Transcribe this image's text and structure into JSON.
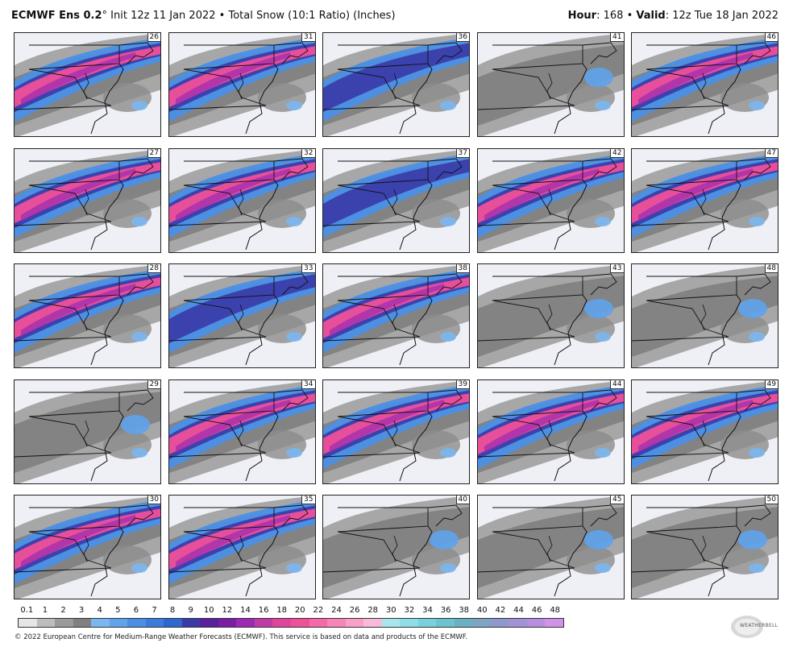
{
  "header": {
    "model": "ECMWF Ens 0.2",
    "degree": "°",
    "init": "Init 12z 11 Jan 2022",
    "bullet": "•",
    "product": "Total Snow (10:1 Ratio) (Inches)",
    "hour_label": "Hour",
    "hour_value": ": 168",
    "valid_label": "Valid",
    "valid_value": ": 12z Tue 18 Jan 2022"
  },
  "panels": [
    {
      "member": "26",
      "intensity": "high"
    },
    {
      "member": "31",
      "intensity": "high"
    },
    {
      "member": "36",
      "intensity": "medium"
    },
    {
      "member": "41",
      "intensity": "low"
    },
    {
      "member": "46",
      "intensity": "high"
    },
    {
      "member": "27",
      "intensity": "high"
    },
    {
      "member": "32",
      "intensity": "high"
    },
    {
      "member": "37",
      "intensity": "medium"
    },
    {
      "member": "42",
      "intensity": "high"
    },
    {
      "member": "47",
      "intensity": "high"
    },
    {
      "member": "28",
      "intensity": "high"
    },
    {
      "member": "33",
      "intensity": "medium"
    },
    {
      "member": "38",
      "intensity": "high"
    },
    {
      "member": "43",
      "intensity": "low"
    },
    {
      "member": "48",
      "intensity": "low"
    },
    {
      "member": "29",
      "intensity": "low"
    },
    {
      "member": "34",
      "intensity": "high"
    },
    {
      "member": "39",
      "intensity": "high"
    },
    {
      "member": "44",
      "intensity": "high"
    },
    {
      "member": "49",
      "intensity": "high"
    },
    {
      "member": "30",
      "intensity": "high"
    },
    {
      "member": "35",
      "intensity": "high"
    },
    {
      "member": "40",
      "intensity": "low"
    },
    {
      "member": "45",
      "intensity": "low"
    },
    {
      "member": "50",
      "intensity": "low"
    }
  ],
  "colorbar": {
    "ticks": [
      "0.1",
      "1",
      "2",
      "3",
      "4",
      "5",
      "6",
      "7",
      "8",
      "9",
      "10",
      "12",
      "14",
      "16",
      "18",
      "20",
      "22",
      "24",
      "26",
      "28",
      "30",
      "32",
      "34",
      "36",
      "38",
      "40",
      "42",
      "44",
      "46",
      "48"
    ],
    "colors": [
      "#e6e6e6",
      "#bdbdbd",
      "#9a9a9a",
      "#808080",
      "#7ab6f0",
      "#5ea3ec",
      "#4a8fe6",
      "#3a7bdc",
      "#2f67cf",
      "#3a3aa8",
      "#5a1f9c",
      "#7a1ea6",
      "#9b2bb0",
      "#c03aa8",
      "#e0459d",
      "#f0509a",
      "#f46aa8",
      "#f785b6",
      "#f8a0c6",
      "#f8bad6",
      "#a8e6ee",
      "#8fdde8",
      "#79d1dd",
      "#6ac3cf",
      "#6ab0c2",
      "#7ea4c6",
      "#8f98cc",
      "#a291d6",
      "#b88ee0",
      "#cf94ea"
    ]
  },
  "footer": "© 2022 European Centre for Medium-Range Weather Forecasts (ECMWF). This service is based on data and products of the ECMWF.",
  "logo": "WEATHERBELL"
}
